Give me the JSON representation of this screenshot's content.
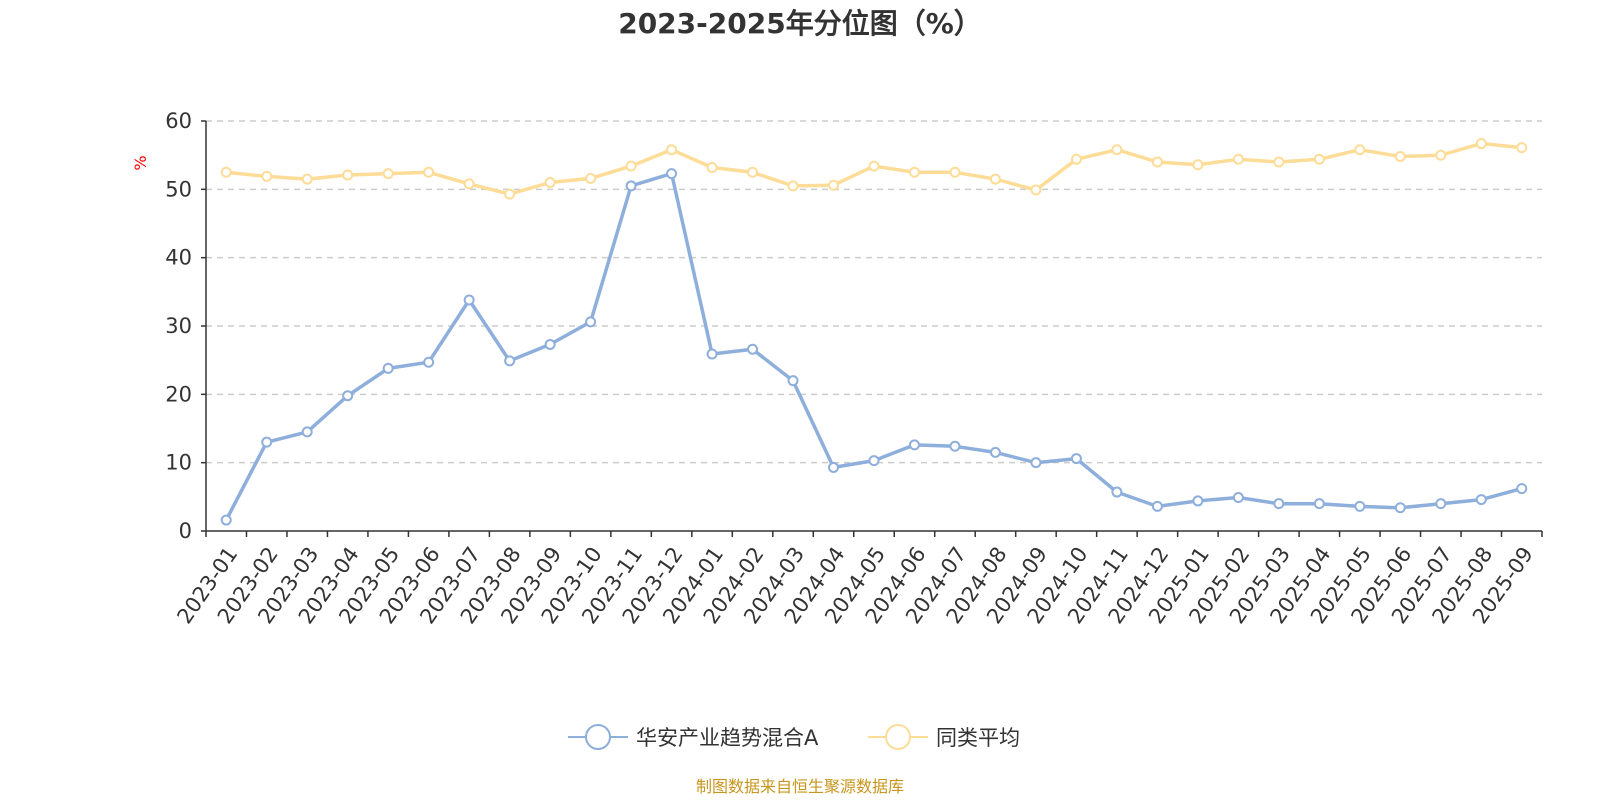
{
  "chart_data": {
    "type": "line",
    "title": "2023-2025年分位图（%）",
    "ylabel": "%",
    "xlabel": "",
    "ylim": [
      0,
      60
    ],
    "yticks": [
      "0",
      "10",
      "20",
      "30",
      "40",
      "50",
      "60"
    ],
    "grid": true,
    "legend_position": "bottom-center",
    "categories": [
      "2023-01",
      "2023-02",
      "2023-03",
      "2023-04",
      "2023-05",
      "2023-06",
      "2023-07",
      "2023-08",
      "2023-09",
      "2023-10",
      "2023-11",
      "2023-12",
      "2024-01",
      "2024-02",
      "2024-03",
      "2024-04",
      "2024-05",
      "2024-06",
      "2024-07",
      "2024-08",
      "2024-09",
      "2024-10",
      "2024-11",
      "2024-12",
      "2025-01",
      "2025-02",
      "2025-03",
      "2025-04",
      "2025-05",
      "2025-06",
      "2025-07",
      "2025-08",
      "2025-09"
    ],
    "series": [
      {
        "name": "华安产业趋势混合A",
        "color": "#8eaedb",
        "values": [
          1.6,
          13.0,
          14.5,
          19.8,
          23.8,
          24.7,
          33.8,
          24.9,
          27.3,
          30.6,
          50.5,
          52.3,
          25.9,
          26.6,
          22.0,
          9.3,
          10.3,
          12.6,
          12.4,
          11.5,
          10.0,
          10.6,
          5.7,
          3.6,
          4.4,
          4.9,
          4.0,
          4.0,
          3.6,
          3.4,
          4.0,
          4.6,
          6.2
        ]
      },
      {
        "name": "同类平均",
        "color": "#fddc97",
        "values": [
          52.5,
          51.9,
          51.5,
          52.1,
          52.3,
          52.5,
          50.8,
          49.3,
          51.0,
          51.6,
          53.4,
          55.8,
          53.2,
          52.5,
          50.5,
          50.6,
          53.4,
          52.5,
          52.5,
          51.5,
          49.9,
          54.4,
          55.8,
          54.0,
          53.6,
          54.4,
          54.0,
          54.4,
          55.8,
          54.8,
          55.0,
          56.7,
          56.1
        ]
      }
    ]
  },
  "footer": {
    "source_text": "制图数据来自恒生聚源数据库",
    "source_color": "#c8961e"
  }
}
